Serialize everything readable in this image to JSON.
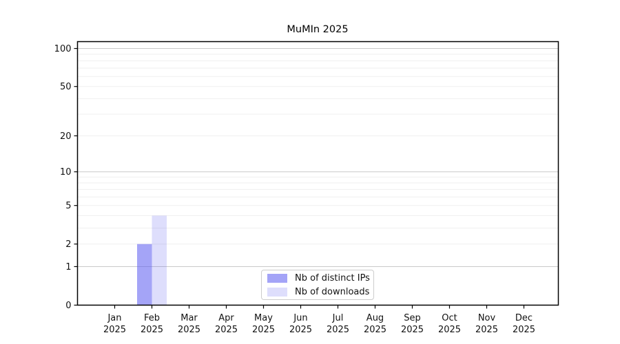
{
  "chart_data": {
    "type": "bar",
    "title": "MuMIn 2025",
    "categories": [
      "Jan 2025",
      "Feb 2025",
      "Mar 2025",
      "Apr 2025",
      "May 2025",
      "Jun 2025",
      "Jul 2025",
      "Aug 2025",
      "Sep 2025",
      "Oct 2025",
      "Nov 2025",
      "Dec 2025"
    ],
    "series": [
      {
        "name": "Nb of distinct IPs",
        "color": "rgba(90,90,240,0.55)",
        "values": [
          0,
          2,
          0,
          0,
          0,
          0,
          0,
          0,
          0,
          0,
          0,
          0
        ]
      },
      {
        "name": "Nb of downloads",
        "color": "rgba(90,90,240,0.20)",
        "values": [
          0,
          4,
          0,
          0,
          0,
          0,
          0,
          0,
          0,
          0,
          0,
          0
        ]
      }
    ],
    "xlabel": "",
    "ylabel": "",
    "yscale": "log1p",
    "ylim": [
      0,
      100
    ],
    "yticks": [
      0,
      1,
      2,
      5,
      10,
      20,
      50,
      100
    ],
    "grid": {
      "on": true,
      "major_values": [
        1,
        10,
        100
      ],
      "minor_values": [
        2,
        3,
        4,
        5,
        6,
        7,
        8,
        9,
        20,
        30,
        40,
        50,
        60,
        70,
        80,
        90
      ],
      "major_color": "#c9c9c9",
      "minor_color": "#efefef"
    },
    "legend": {
      "position": "bottom-center",
      "border_color": "#cccccc"
    },
    "axis_color": "#000000",
    "background_color": "#ffffff"
  }
}
